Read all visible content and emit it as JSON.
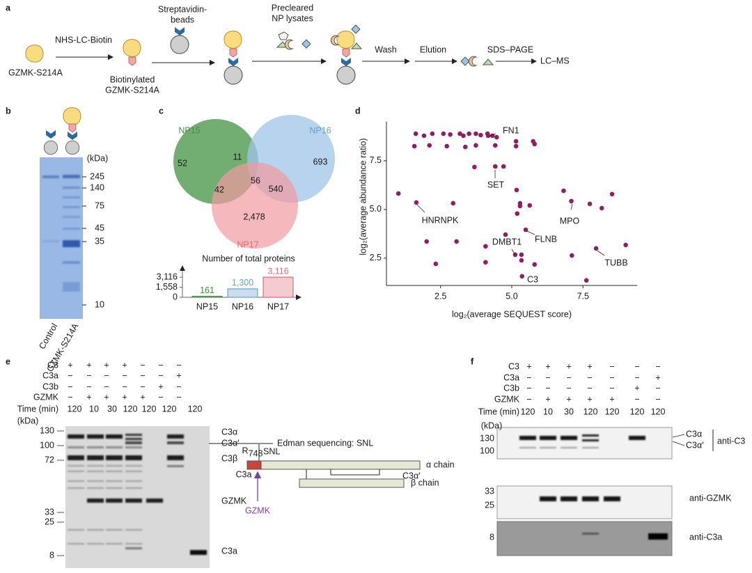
{
  "labels": [
    "a",
    "b",
    "c",
    "d",
    "e",
    "f"
  ],
  "panel_a": {
    "start": "GZMK-S214A",
    "reagent": "NHS-LC-Biotin",
    "product": [
      "Biotinylated",
      "GZMK-S214A"
    ],
    "beads": [
      "Streptavidin-",
      "beads"
    ],
    "lysates": [
      "Precleared",
      "NP lysates"
    ],
    "steps": [
      "Wash",
      "Elution",
      "SDS–PAGE",
      "LC–MS"
    ]
  },
  "panel_b": {
    "unit": "(kDa)",
    "markers": [
      "245",
      "140",
      "75",
      "45",
      "35",
      "10"
    ],
    "lanes": [
      "Control",
      "GZMK-S214A"
    ]
  },
  "panel_c": {
    "sets": [
      "NP15",
      "NP16",
      "NP17"
    ],
    "regions": [
      "52",
      "11",
      "693",
      "42",
      "56",
      "540",
      "2,478"
    ]
  },
  "chart_data": [
    {
      "type": "bar",
      "title": "Number of total proteins",
      "categories": [
        "NP15",
        "NP16",
        "NP17"
      ],
      "values": [
        161,
        1300,
        3116
      ],
      "value_labels": [
        "161",
        "1,300",
        "3,116"
      ],
      "colors": [
        "#3f8f3f",
        "#6a9fcf",
        "#e06c78"
      ],
      "ylim": [
        0,
        4200
      ],
      "yticks": [
        0,
        {
          "value": 1558,
          "label": "1,558"
        },
        {
          "value": 3116,
          "label": "3,116"
        }
      ]
    },
    {
      "type": "scatter",
      "xlabel": "log₂(average SEQUEST score)",
      "ylabel": "log₂(average abundance ratio)",
      "color": "#8e1f63",
      "xlim": [
        0.6,
        9.4
      ],
      "ylim": [
        1.1,
        9.5
      ],
      "xticks": [
        2.5,
        {
          "value": 5,
          "label": "5.0"
        },
        7.5
      ],
      "yticks": [
        2.5,
        {
          "value": 5,
          "label": "5.0"
        },
        7.5
      ],
      "x": [
        1.63,
        1.92,
        2.21,
        2.6,
        2.84,
        3.18,
        3.3,
        3.5,
        3.74,
        3.91,
        4.15,
        4.32,
        4.47,
        1.58,
        2.11,
        2.72,
        3.37,
        3.74,
        4.42,
        5.15,
        5.75,
        5.8,
        5.15,
        4.17,
        4.42,
        4.71,
        3.69,
        1.02,
        1.65,
        2.94,
        5.17,
        5.29,
        5.29,
        5.63,
        5.19,
        6.82,
        7.09,
        7.74,
        8.16,
        8.52,
        5.49,
        4.78,
        2.01,
        3.06,
        5.12,
        5.34,
        5.34,
        5.8,
        4.08,
        4.08,
        2.33,
        7.11,
        7.96,
        9.0,
        5.36,
        7.62
      ],
      "values": [
        8.89,
        8.79,
        8.89,
        8.89,
        8.85,
        8.89,
        8.79,
        8.89,
        8.89,
        8.82,
        8.89,
        8.79,
        8.71,
        8.25,
        8.29,
        8.25,
        8.21,
        8.29,
        8.29,
        8.25,
        8.5,
        8.36,
        8.5,
        8.79,
        7.21,
        7.21,
        7.18,
        5.82,
        5.36,
        5.32,
        6.0,
        5.32,
        5.18,
        5.21,
        4.79,
        5.96,
        5.43,
        5.29,
        5.07,
        5.79,
        3.96,
        3.71,
        3.36,
        3.36,
        2.68,
        2.68,
        2.39,
        2.18,
        3.11,
        2.29,
        2.21,
        2.64,
        3.0,
        3.18,
        1.57,
        1.36
      ],
      "annotations": [
        "FN1",
        "SET",
        "HNRNPK",
        "MPO",
        "DMBT1",
        "FLNB",
        "TUBB",
        "C3"
      ]
    }
  ],
  "panel_e": {
    "conditions": [
      {
        "label": "C3",
        "signs": [
          "+",
          "+",
          "+",
          "+",
          "−",
          "−",
          "−"
        ]
      },
      {
        "label": "C3a",
        "signs": [
          "−",
          "−",
          "−",
          "−",
          "−",
          "−",
          "+"
        ]
      },
      {
        "label": "C3b",
        "signs": [
          "−",
          "−",
          "−",
          "−",
          "−",
          "+",
          "−"
        ]
      },
      {
        "label": "GZMK",
        "signs": [
          "−",
          "+",
          "+",
          "+",
          "+",
          "−",
          "−"
        ]
      }
    ],
    "time_label": "Time (min)",
    "times": [
      "120",
      "10",
      "30",
      "120",
      "120",
      "120",
      "120"
    ],
    "unit": "(kDa)",
    "markers": [
      "130",
      "100",
      "72",
      "33",
      "25",
      "8"
    ],
    "bands": [
      "C3α",
      "C3α′",
      "C3β",
      "GZMK",
      "C3a"
    ],
    "note": "Edman sequencing: SNL",
    "schematic": {
      "residue": "R",
      "residue_index": "748",
      "cleavage": "SNL",
      "fragment": "C3a",
      "alpha": "α chain",
      "alpha_prime": "C3α′",
      "beta": "β chain",
      "protease": "GZMK"
    }
  },
  "panel_f": {
    "conditions": [
      {
        "label": "C3",
        "signs": [
          "+",
          "+",
          "+",
          "+",
          "−",
          "−",
          "−"
        ]
      },
      {
        "label": "C3a",
        "signs": [
          "−",
          "−",
          "−",
          "−",
          "−",
          "−",
          "+"
        ]
      },
      {
        "label": "C3b",
        "signs": [
          "−",
          "−",
          "−",
          "−",
          "−",
          "+",
          "−"
        ]
      },
      {
        "label": "GZMK",
        "signs": [
          "−",
          "+",
          "+",
          "+",
          "+",
          "−",
          "−"
        ]
      }
    ],
    "time_label": "Time (min)",
    "times": [
      "120",
      "10",
      "30",
      "120",
      "120",
      "120",
      "120"
    ],
    "unit": "(kDa)",
    "markers": [
      "130",
      "100",
      "33",
      "25",
      "8"
    ],
    "bands": [
      "C3α",
      "C3α′"
    ],
    "antibodies": [
      "anti-C3",
      "anti-GZMK",
      "anti-C3a"
    ]
  }
}
